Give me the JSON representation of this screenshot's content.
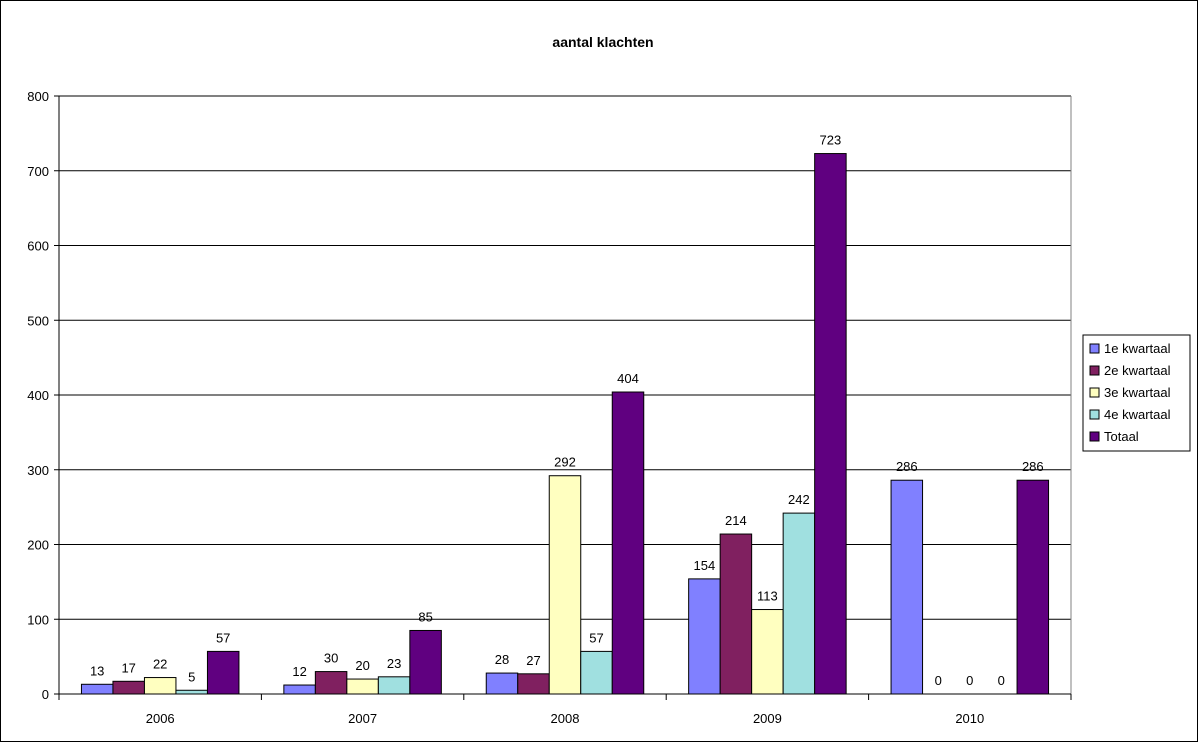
{
  "chart_data": {
    "type": "bar",
    "title": "aantal klachten",
    "xlabel": "",
    "ylabel": "",
    "categories": [
      "2006",
      "2007",
      "2008",
      "2009",
      "2010"
    ],
    "ylim": [
      0,
      800
    ],
    "yticks": [
      0,
      100,
      200,
      300,
      400,
      500,
      600,
      700,
      800
    ],
    "grid": true,
    "legend_position": "right",
    "series": [
      {
        "name": "1e kwartaal",
        "color": "#8080ff",
        "values": [
          13,
          12,
          28,
          154,
          286
        ]
      },
      {
        "name": "2e kwartaal",
        "color": "#802060",
        "values": [
          17,
          30,
          27,
          214,
          0
        ]
      },
      {
        "name": "3e kwartaal",
        "color": "#ffffc0",
        "values": [
          22,
          20,
          292,
          113,
          0
        ]
      },
      {
        "name": "4e kwartaal",
        "color": "#a0e0e0",
        "values": [
          5,
          23,
          57,
          242,
          0
        ]
      },
      {
        "name": "Totaal",
        "color": "#600080",
        "values": [
          57,
          85,
          404,
          723,
          286
        ]
      }
    ]
  }
}
